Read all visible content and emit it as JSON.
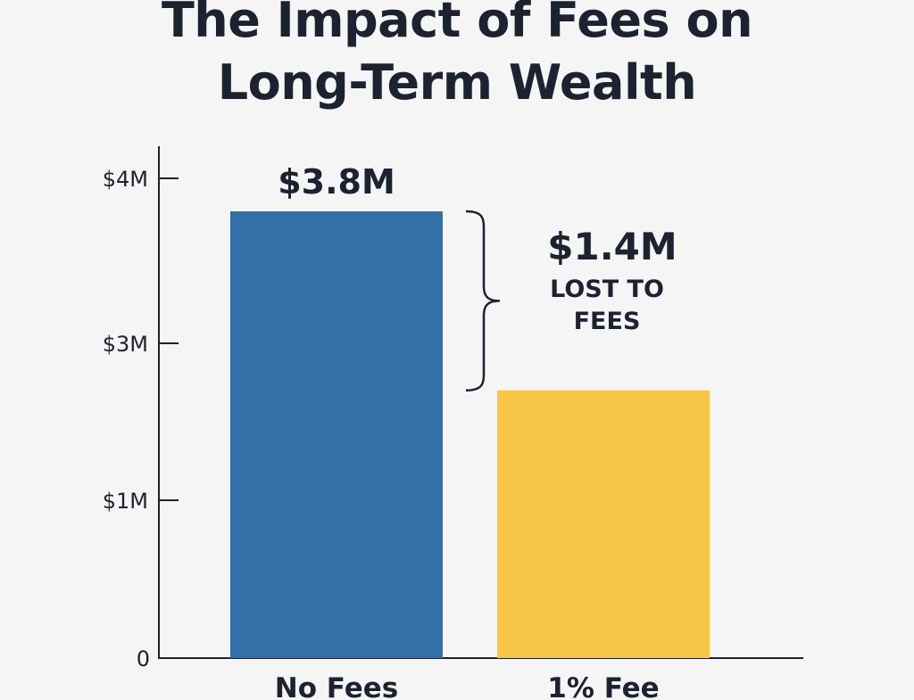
{
  "title_lines": [
    "The Impact of Fees on",
    "Long-Term Wealth"
  ],
  "chart_data": {
    "type": "bar",
    "title": "The Impact of Fees on Long-Term Wealth",
    "categories": [
      "No Fees",
      "1% Fee"
    ],
    "values": [
      3.8,
      2.4
    ],
    "data_labels": [
      "$3.8M",
      ""
    ],
    "bar_colors": [
      "#3470a8",
      "#f7c647"
    ],
    "y_ticks": [
      {
        "label": "0",
        "value": 0
      },
      {
        "label": "$1M",
        "value": 1
      },
      {
        "label": "$3M",
        "value": 3
      },
      {
        "label": "$4M",
        "value": 4
      }
    ],
    "annotation": {
      "value": "$1.4M",
      "text_lines": [
        "LOST TO",
        "FEES"
      ]
    },
    "xlabel": "",
    "ylabel": "",
    "grid": false,
    "legend": "none"
  },
  "colors": {
    "background": "#f5f5f5",
    "text": "#1c2230",
    "axis": "#1c2230"
  }
}
